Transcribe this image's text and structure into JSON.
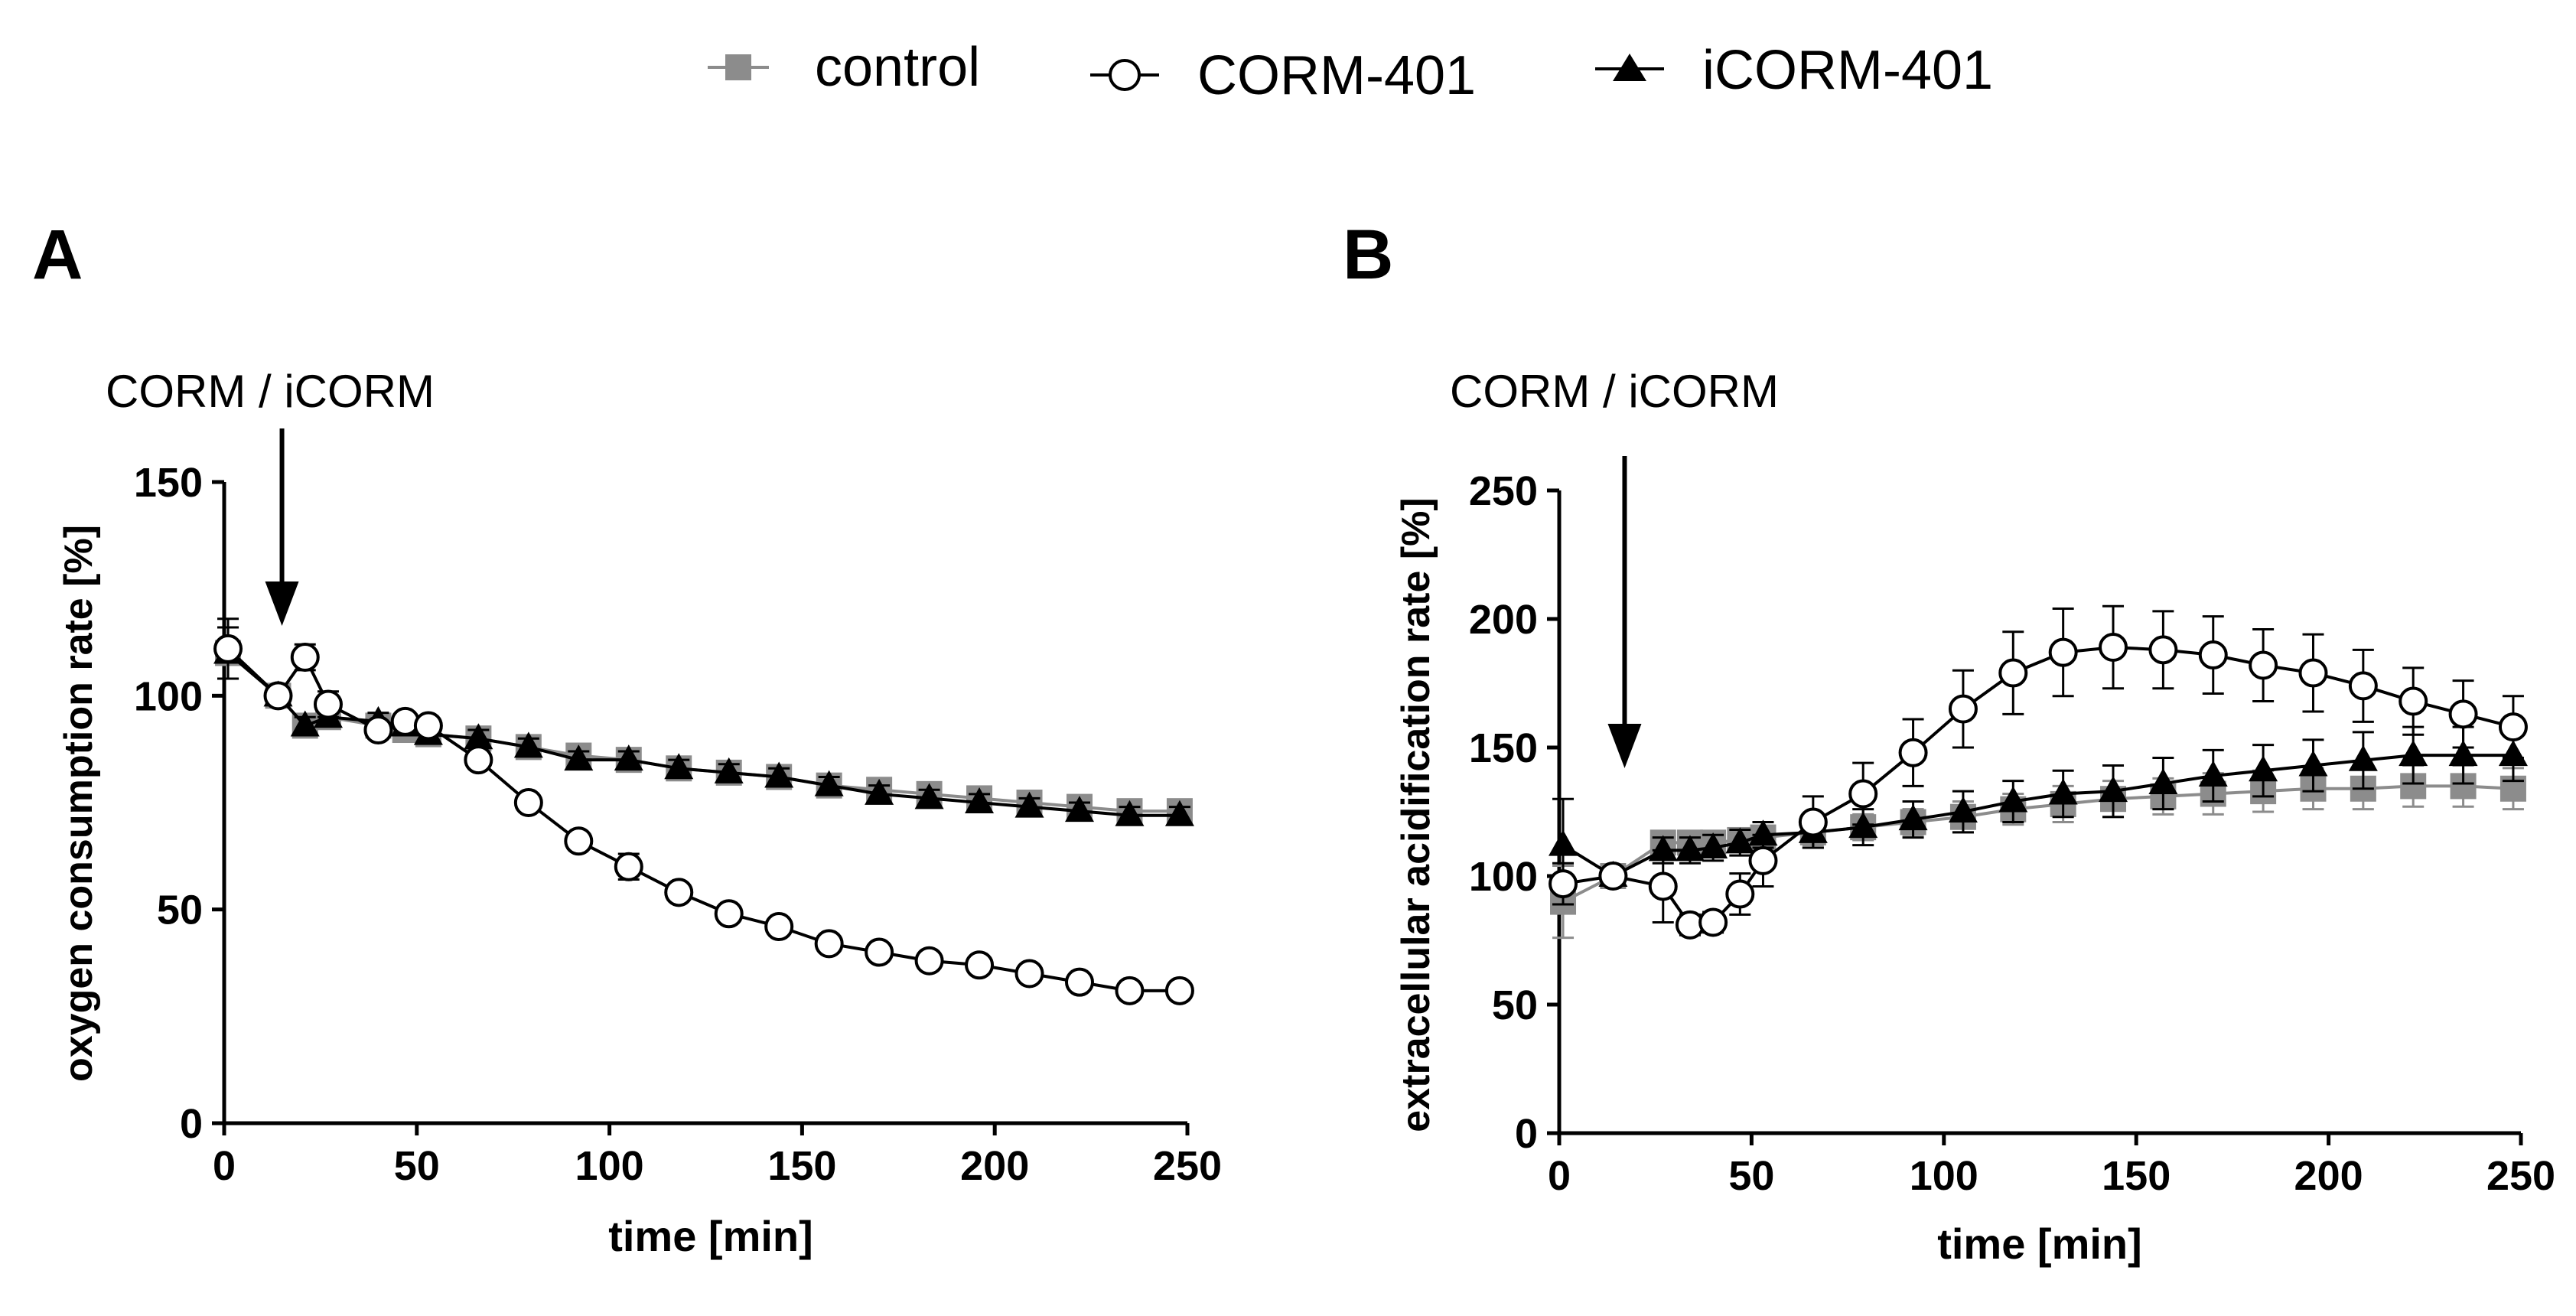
{
  "legend": {
    "placement": "top-center",
    "entries": [
      {
        "label": "control",
        "marker": "square",
        "color": "#8c8c8c"
      },
      {
        "label": "CORM-401",
        "marker": "open-circle",
        "color": "#000000"
      },
      {
        "label": "iCORM-401",
        "marker": "filled-triangle",
        "color": "#000000"
      }
    ]
  },
  "chart_data": [
    {
      "type": "line",
      "panel": "A",
      "annotation": "CORM / iCORM",
      "annotation_x": 15,
      "xlabel": "time [min]",
      "ylabel": "oxygen consumption rate [%]",
      "xlim": [
        0,
        250
      ],
      "ylim": [
        0,
        150
      ],
      "xticks": [
        0,
        50,
        100,
        150,
        200,
        250
      ],
      "yticks": [
        0,
        50,
        100,
        150
      ],
      "series": [
        {
          "name": "control",
          "color": "#8c8c8c",
          "marker": "square",
          "x": [
            1,
            14,
            21,
            27,
            40,
            47,
            53,
            66,
            79,
            92,
            105,
            118,
            131,
            144,
            157,
            170,
            183,
            196,
            209,
            222,
            235,
            248
          ],
          "y": [
            110,
            100,
            93,
            95,
            93,
            92,
            91,
            90,
            88,
            86,
            85,
            83,
            82,
            81,
            79,
            78,
            77,
            76,
            75,
            74,
            73,
            73
          ],
          "err": [
            6,
            2,
            2,
            2,
            2,
            2,
            2,
            2,
            2,
            2,
            2,
            2,
            2,
            2,
            2,
            2,
            2,
            2,
            2,
            2,
            2,
            2
          ]
        },
        {
          "name": "CORM-401",
          "color": "#000000",
          "marker": "open-circle",
          "x": [
            1,
            14,
            21,
            27,
            40,
            47,
            53,
            66,
            79,
            92,
            105,
            118,
            131,
            144,
            157,
            170,
            183,
            196,
            209,
            222,
            235,
            248
          ],
          "y": [
            111,
            100,
            109,
            98,
            92,
            94,
            93,
            85,
            75,
            66,
            60,
            54,
            49,
            46,
            42,
            40,
            38,
            37,
            35,
            33,
            31,
            31
          ],
          "err": [
            7,
            2,
            3,
            3,
            2,
            2,
            2,
            2,
            2,
            2,
            3,
            2,
            2,
            2,
            1,
            1,
            1,
            1,
            1,
            1,
            1,
            1
          ]
        },
        {
          "name": "iCORM-401",
          "color": "#000000",
          "marker": "filled-triangle",
          "x": [
            1,
            14,
            21,
            27,
            40,
            47,
            53,
            66,
            79,
            92,
            105,
            118,
            131,
            144,
            157,
            170,
            183,
            196,
            209,
            222,
            235,
            248
          ],
          "y": [
            110,
            100,
            93,
            95,
            94,
            93,
            91,
            90,
            88,
            85,
            85,
            83,
            82,
            81,
            79,
            77,
            76,
            75,
            74,
            73,
            72,
            72
          ],
          "err": [
            6,
            2,
            2,
            2,
            2,
            2,
            2,
            2,
            2,
            2,
            2,
            2,
            2,
            2,
            2,
            2,
            2,
            2,
            2,
            2,
            2,
            2
          ]
        }
      ]
    },
    {
      "type": "line",
      "panel": "B",
      "annotation": "CORM / iCORM",
      "annotation_x": 17,
      "xlabel": "time [min]",
      "ylabel": "extracellular acidification rate [%]",
      "xlim": [
        0,
        250
      ],
      "ylim": [
        0,
        250
      ],
      "xticks": [
        0,
        50,
        100,
        150,
        200,
        250
      ],
      "yticks": [
        0,
        50,
        100,
        150,
        200,
        250
      ],
      "series": [
        {
          "name": "control",
          "color": "#8c8c8c",
          "marker": "square",
          "x": [
            1,
            14,
            27,
            34,
            40,
            47,
            53,
            66,
            79,
            92,
            105,
            118,
            131,
            144,
            157,
            170,
            183,
            196,
            209,
            222,
            235,
            248
          ],
          "y": [
            90,
            100,
            113,
            113,
            113,
            114,
            115,
            117,
            119,
            121,
            123,
            126,
            128,
            130,
            131,
            132,
            133,
            134,
            134,
            135,
            135,
            134
          ],
          "err": [
            14,
            3,
            4,
            4,
            4,
            4,
            4,
            5,
            5,
            5,
            6,
            6,
            7,
            7,
            7,
            8,
            8,
            8,
            8,
            8,
            8,
            8
          ]
        },
        {
          "name": "CORM-401",
          "color": "#000000",
          "marker": "open-circle",
          "x": [
            1,
            14,
            27,
            34,
            40,
            47,
            53,
            66,
            79,
            92,
            105,
            118,
            131,
            144,
            157,
            170,
            183,
            196,
            209,
            222,
            235,
            248
          ],
          "y": [
            97,
            100,
            96,
            81,
            82,
            93,
            106,
            121,
            132,
            148,
            165,
            179,
            187,
            189,
            188,
            186,
            182,
            179,
            174,
            168,
            163,
            158
          ],
          "err": [
            8,
            3,
            14,
            4,
            4,
            8,
            10,
            10,
            12,
            13,
            15,
            16,
            17,
            16,
            15,
            15,
            14,
            15,
            14,
            13,
            13,
            12
          ]
        },
        {
          "name": "iCORM-401",
          "color": "#000000",
          "marker": "filled-triangle",
          "x": [
            1,
            14,
            27,
            34,
            40,
            47,
            53,
            66,
            79,
            92,
            105,
            118,
            131,
            144,
            157,
            170,
            183,
            196,
            209,
            222,
            235,
            248
          ],
          "y": [
            112,
            100,
            110,
            110,
            111,
            113,
            116,
            117,
            119,
            122,
            125,
            129,
            132,
            133,
            136,
            139,
            141,
            143,
            145,
            147,
            147,
            147
          ],
          "err": [
            18,
            3,
            5,
            5,
            5,
            5,
            5,
            6,
            7,
            7,
            8,
            8,
            9,
            10,
            10,
            10,
            10,
            10,
            11,
            11,
            11,
            10
          ]
        }
      ]
    }
  ]
}
